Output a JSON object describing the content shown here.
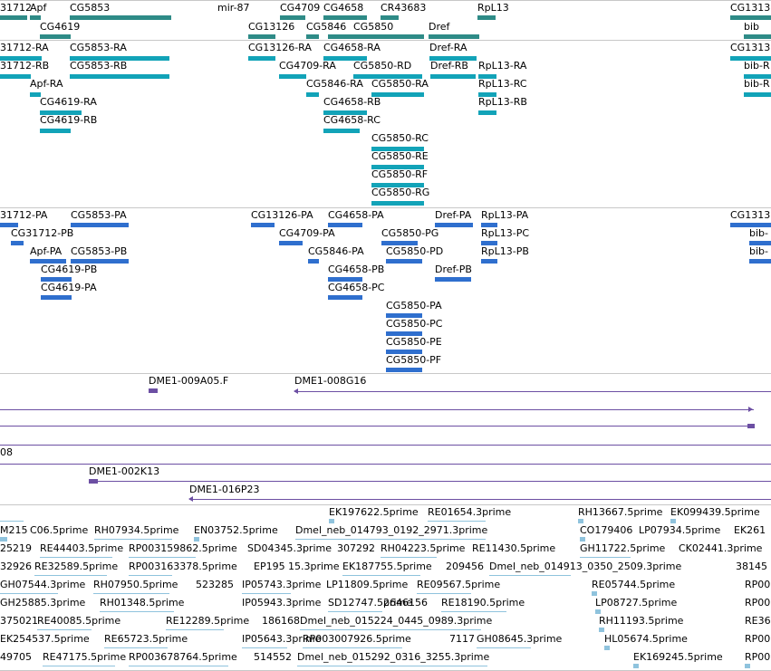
{
  "colors": {
    "gene": "#2e8b87",
    "transcript": "#12a3b8",
    "protein": "#2f6fce",
    "clone": "#6c4fa3",
    "est": "#8fc3dd",
    "divider": "#c8c8c8"
  },
  "gene_track": {
    "labels": [
      "31712",
      "Apf",
      "CG5853",
      "mir-87",
      "CG4709",
      "CG4658",
      "CR43683",
      "RpL13",
      "CG1313",
      "CG4619",
      "CG13126",
      "CG5846",
      "CG5850",
      "Dref",
      "bib"
    ]
  },
  "transcript_track": {
    "labels": [
      "31712-RA",
      "CG5853-RA",
      "CG13126-RA",
      "CG4658-RA",
      "Dref-RA",
      "CG1313",
      "31712-RB",
      "CG5853-RB",
      "CG4709-RA",
      "CG5850-RD",
      "Dref-RB",
      "RpL13-RA",
      "bib-R",
      "Apf-RA",
      "CG5846-RA",
      "CG5850-RA",
      "RpL13-RC",
      "bib-R",
      "CG4619-RA",
      "CG4658-RB",
      "RpL13-RB",
      "CG4619-RB",
      "CG4658-RC",
      "CG5850-RC",
      "CG5850-RE",
      "CG5850-RF",
      "CG5850-RG"
    ]
  },
  "protein_track": {
    "labels": [
      "31712-PA",
      "CG5853-PA",
      "CG13126-PA",
      "CG4658-PA",
      "Dref-PA",
      "RpL13-PA",
      "CG1313",
      "CG31712-PB",
      "CG4709-PA",
      "CG5850-PG",
      "RpL13-PC",
      "bib-",
      "Apf-PA",
      "CG5853-PB",
      "CG5846-PA",
      "CG5850-PD",
      "RpL13-PB",
      "bib-",
      "CG4619-PB",
      "CG4658-PB",
      "Dref-PB",
      "CG4619-PA",
      "CG4658-PC",
      "CG5850-PA",
      "CG5850-PC",
      "CG5850-PE",
      "CG5850-PF"
    ]
  },
  "clone_track": {
    "labels": [
      "DME1-009A05.F",
      "DME1-008G16",
      "08",
      "DME1-002K13",
      "DME1-016P23"
    ]
  },
  "est_track": {
    "labels": [
      "EK197622.5prime",
      "RE01654.3prime",
      "RH13667.5prime",
      "EK099439.5prime",
      "M215",
      "C06.5prime",
      "RH07934.5prime",
      "EN03752.5prime",
      "Dmel_neb_014793_0192_2971.3prime",
      "CO179406",
      "LP07934.5prime",
      "EK261",
      "25219",
      "RE44403.5prime",
      "RP003159862.5prime",
      "SD04345.3prime",
      "307292",
      "RH04223.5prime",
      "RE11430.5prime",
      "GH11722.5prime",
      "CK02441.3prime",
      "32926",
      "RE32589.5prime",
      "RP003163378.5prime",
      "EP195",
      "15.3prime",
      "EK187755.5prime",
      "209456",
      "Dmel_neb_014913_0350_2509.3prime",
      "38145",
      "GH07544.3prime",
      "RH07950.5prime",
      "523285",
      "IP05743.3prime",
      "LP11809.5prime",
      "RE09567.5prime",
      "RE05744.5prime",
      "RP00",
      "GH25885.3prime",
      "RH01348.5prime",
      "IP05943.3prime",
      "SD12747.5prime",
      "2646156",
      "RE18190.5prime",
      "LP08727.5prime",
      "RP00",
      "375021",
      "RE40085.5prime",
      "RE12289.5prime",
      "186168",
      "Dmel_neb_015224_0445_0989.3prime",
      "RH11193.5prime",
      "RE36",
      "EK254537.5prime",
      "RE65723.5prime",
      "IP05643.3prime",
      "RP003007926.5prime",
      "7117",
      "GH08645.3prime",
      "HL05674.5prime",
      "RP00",
      "49705",
      "RE47175.5prime",
      "RP003678764.5prime",
      "514552",
      "Dmel_neb_015292_0316_3255.3prime",
      "EK169245.5prime",
      "RP00"
    ]
  }
}
